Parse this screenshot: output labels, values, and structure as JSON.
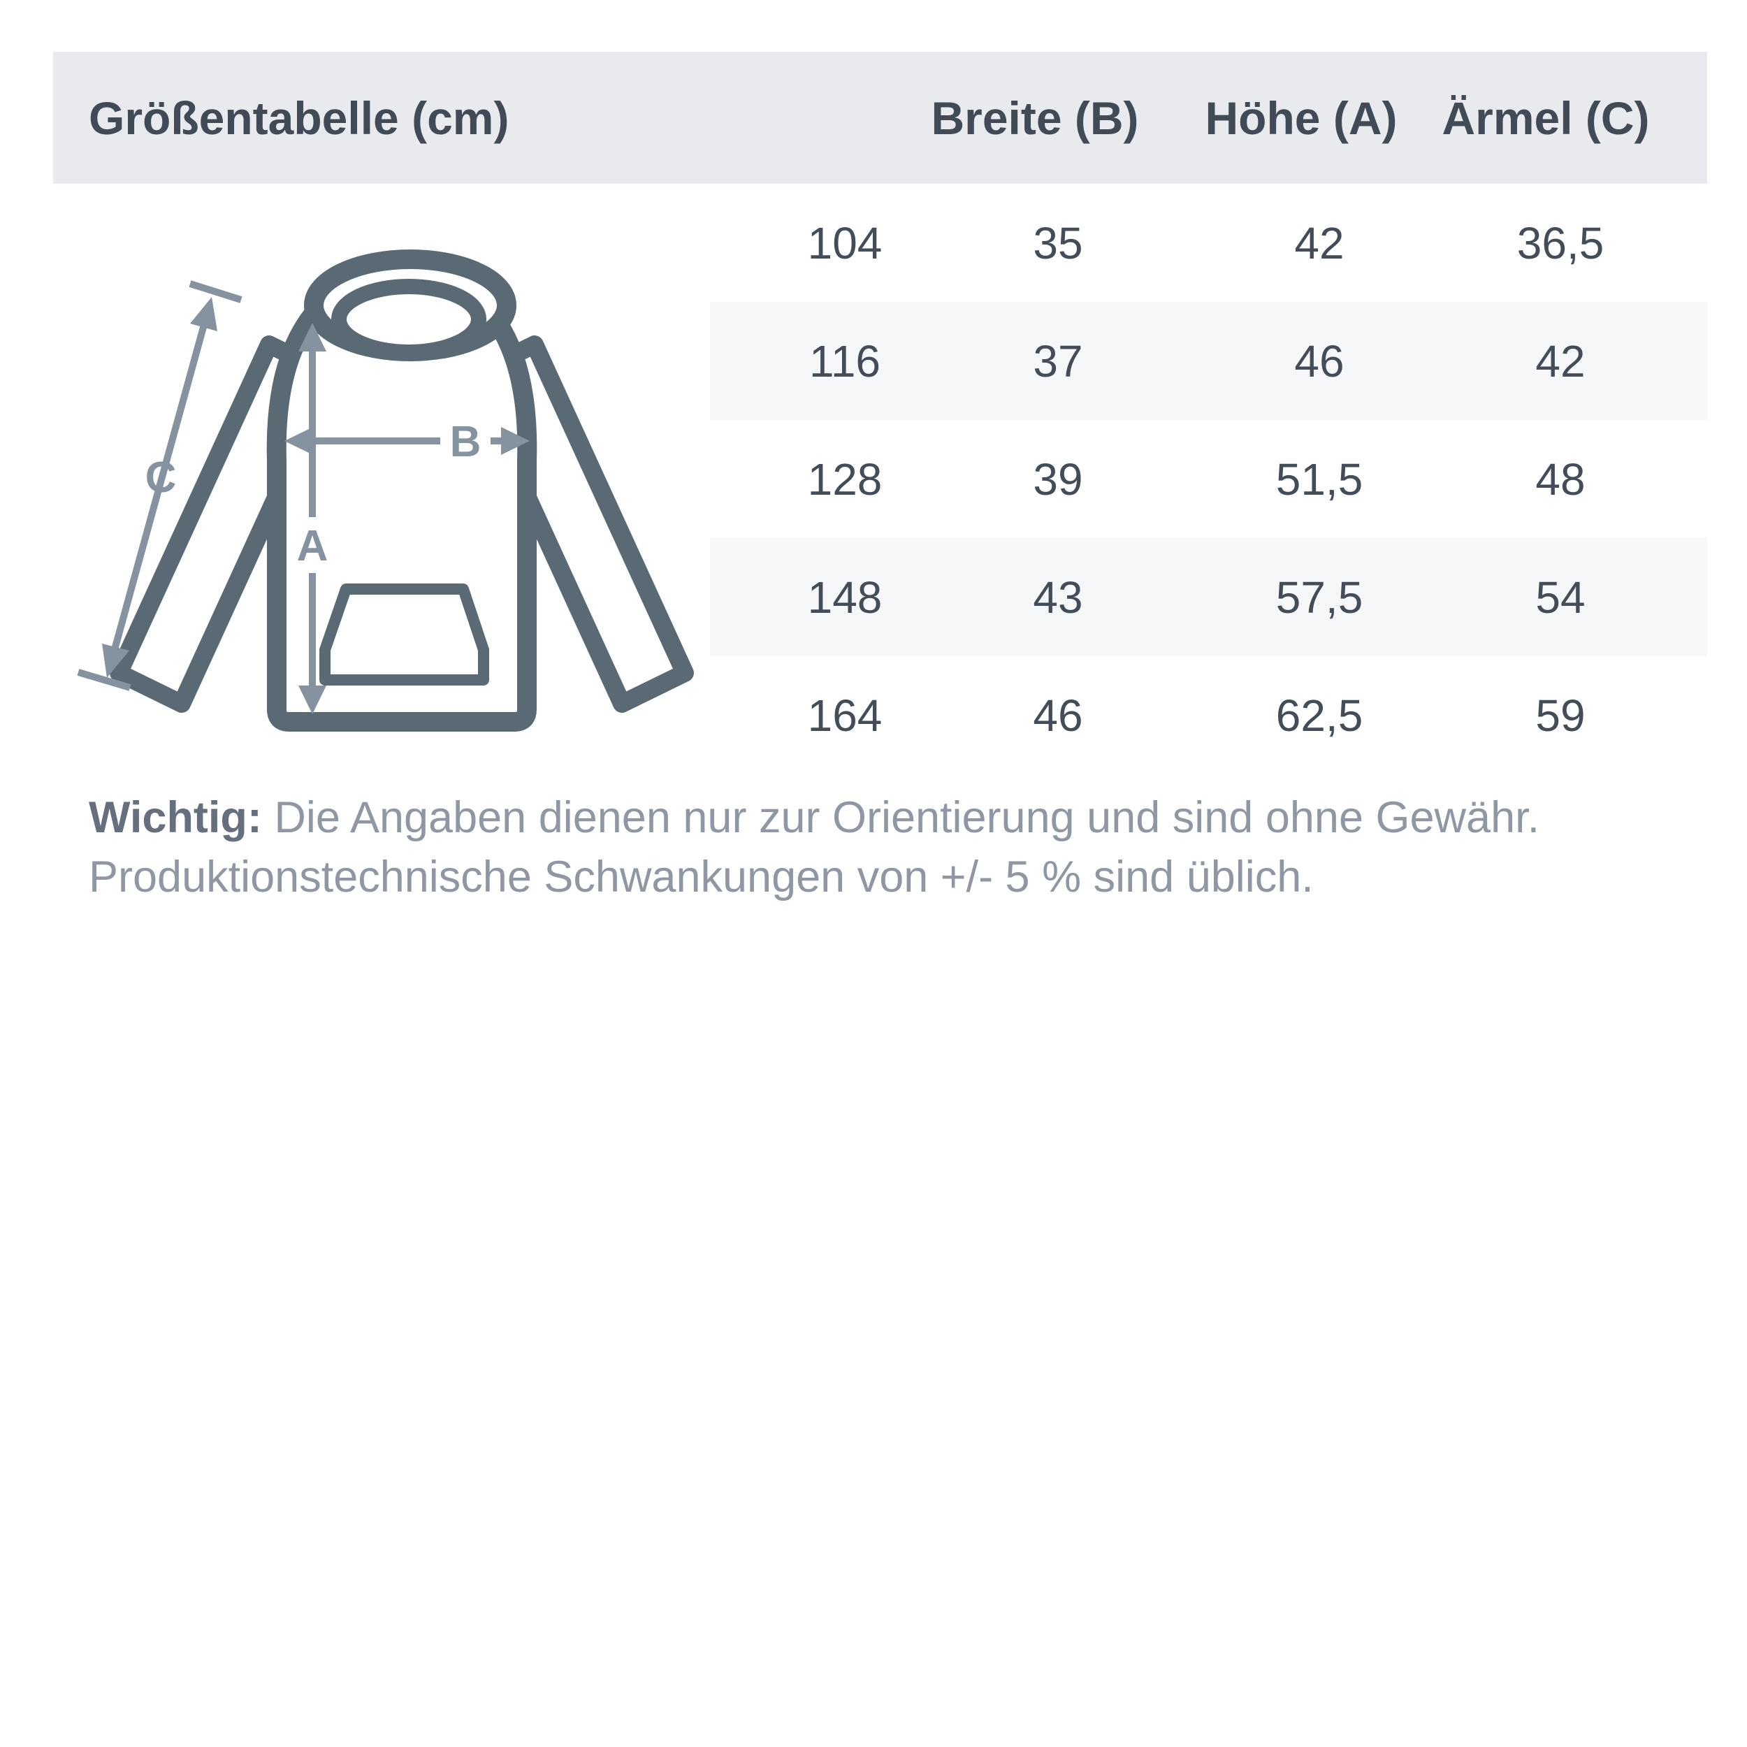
{
  "header": {
    "title": "Größentabelle (cm)",
    "columns": [
      "Breite (B)",
      "Höhe (A)",
      "Ärmel (C)"
    ]
  },
  "table": {
    "rows": [
      [
        "104",
        "35",
        "42",
        "36,5"
      ],
      [
        "116",
        "37",
        "46",
        "42"
      ],
      [
        "128",
        "39",
        "51,5",
        "48"
      ],
      [
        "148",
        "43",
        "57,5",
        "54"
      ],
      [
        "164",
        "46",
        "62,5",
        "59"
      ]
    ]
  },
  "diagram": {
    "label_a": "A",
    "label_b": "B",
    "label_c": "C"
  },
  "note": {
    "bold": "Wichtig:",
    "line1_rest": " Die Angaben dienen nur zur Orientierung und sind ohne Gewähr.",
    "line2": "Produktionstechnische Schwankungen von +/- 5 % sind üblich."
  },
  "colors": {
    "header_bg": "#e9eaee",
    "stripe_bg": "#f6f7f9",
    "text_dark": "#414b58",
    "note_gray": "#8e97a3",
    "hoodie_outline": "#596a74",
    "arrow_gray": "#8593a0"
  }
}
